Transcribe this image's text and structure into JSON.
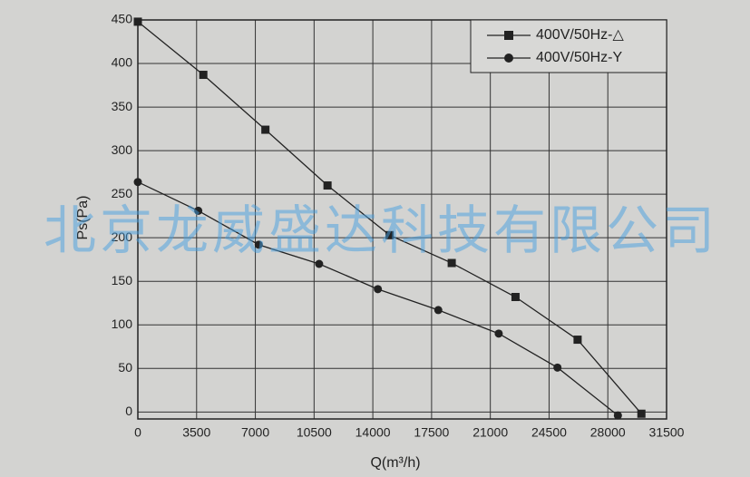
{
  "chart_data": {
    "type": "line",
    "x_label": "Q(m³/h)",
    "y_label": "Ps(Pa)",
    "watermark": "北京龙威盛达科技有限公司",
    "xlim": [
      0,
      31500
    ],
    "xticks": [
      0,
      3500,
      7000,
      10500,
      14000,
      17500,
      21000,
      24500,
      28000,
      31500
    ],
    "ylim": [
      -8,
      450
    ],
    "yticks": [
      0,
      50,
      100,
      150,
      200,
      250,
      300,
      350,
      400,
      450
    ],
    "grid": true,
    "legend": "upper right",
    "series": [
      {
        "name": "400V/50Hz-△",
        "color": "#222222",
        "marker": "square",
        "x": [
          0,
          3900,
          7600,
          11300,
          15000,
          18700,
          22500,
          26200,
          30000
        ],
        "values": [
          448,
          387,
          324,
          260,
          203,
          171,
          132,
          83,
          -2
        ]
      },
      {
        "name": "400V/50Hz-Y",
        "color": "#222222",
        "marker": "circle",
        "x": [
          0,
          3600,
          7200,
          10800,
          14300,
          17900,
          21500,
          25000,
          28600
        ],
        "values": [
          264,
          231,
          192,
          170,
          141,
          117,
          90,
          51,
          -4
        ]
      }
    ]
  }
}
